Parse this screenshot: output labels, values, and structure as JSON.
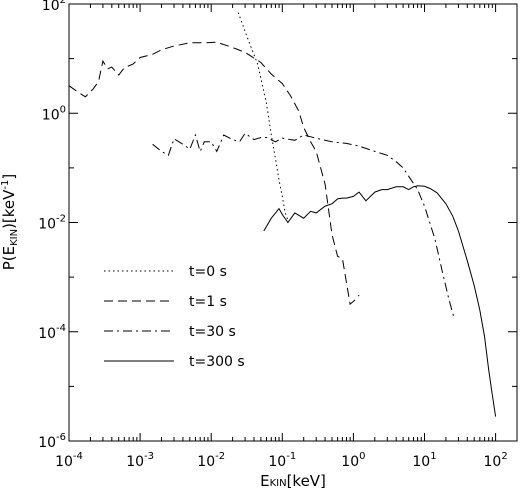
{
  "chart_data": {
    "type": "line",
    "xscale": "log",
    "yscale": "log",
    "xlim": [
      0.0001,
      200
    ],
    "ylim": [
      1e-06,
      100
    ],
    "ylabel": {
      "main": "P(E",
      "sub": "KIN",
      "rest": ")[keV",
      "sup": "-1",
      "end": "]"
    },
    "xlabel": {
      "main": "E",
      "sub": "KIN",
      "rest": "[keV]"
    },
    "x_ticks": [
      {
        "value": 0.0001,
        "base": "10",
        "exp": "-4"
      },
      {
        "value": 0.001,
        "base": "10",
        "exp": "-3"
      },
      {
        "value": 0.01,
        "base": "10",
        "exp": "-2"
      },
      {
        "value": 0.1,
        "base": "10",
        "exp": "-1"
      },
      {
        "value": 1,
        "base": "10",
        "exp": "0"
      },
      {
        "value": 10,
        "base": "10",
        "exp": "1"
      },
      {
        "value": 100,
        "base": "10",
        "exp": "2"
      }
    ],
    "y_ticks": [
      {
        "value": 1e-06,
        "base": "10",
        "exp": "-6"
      },
      {
        "value": 0.0001,
        "base": "10",
        "exp": "-4"
      },
      {
        "value": 0.01,
        "base": "10",
        "exp": "-2"
      },
      {
        "value": 1,
        "base": "10",
        "exp": "0"
      },
      {
        "value": 100,
        "base": "10",
        "exp": "2"
      }
    ],
    "series": [
      {
        "name": "t=0 s",
        "dash": "dotted",
        "x": [
          0.024,
          0.032,
          0.045,
          0.06,
          0.07,
          0.08,
          0.09,
          0.1,
          0.11,
          0.12
        ],
        "y": [
          70,
          25,
          8,
          1.5,
          0.4,
          0.15,
          0.06,
          0.03,
          0.015,
          0.011
        ]
      },
      {
        "name": "t=1 s",
        "dash": "dashed",
        "x": [
          0.0001,
          0.00013,
          0.00017,
          0.00022,
          0.00026,
          0.0003,
          0.00035,
          0.0004,
          0.0005,
          0.0006,
          0.0008,
          0.001,
          0.0015,
          0.002,
          0.003,
          0.005,
          0.008,
          0.012,
          0.02,
          0.03,
          0.05,
          0.07,
          0.1,
          0.13,
          0.17,
          0.2,
          0.25,
          0.3,
          0.4,
          0.5,
          0.6,
          0.7,
          0.9,
          1.1,
          1.2
        ],
        "y": [
          3.2,
          2.5,
          2.0,
          2.8,
          3.8,
          9.0,
          6.5,
          7.0,
          5.0,
          6.8,
          8.0,
          10.5,
          12.0,
          14.5,
          17.0,
          19.5,
          19.5,
          20.0,
          16.0,
          13.0,
          8.5,
          5.2,
          3.5,
          2.1,
          1.1,
          0.55,
          0.3,
          0.2,
          0.05,
          0.006,
          0.0024,
          0.0022,
          0.00032,
          0.0004,
          0.00047
        ]
      },
      {
        "name": "t=30 s",
        "dash": "dashdot",
        "x": [
          0.0015,
          0.002,
          0.0025,
          0.003,
          0.004,
          0.005,
          0.006,
          0.007,
          0.008,
          0.01,
          0.012,
          0.015,
          0.02,
          0.025,
          0.03,
          0.04,
          0.05,
          0.06,
          0.08,
          0.1,
          0.15,
          0.2,
          0.3,
          0.5,
          0.8,
          1.2,
          2,
          3,
          4,
          5,
          6,
          8,
          10,
          14,
          18,
          22,
          26
        ],
        "y": [
          0.27,
          0.2,
          0.17,
          0.34,
          0.27,
          0.22,
          0.4,
          0.2,
          0.3,
          0.3,
          0.2,
          0.4,
          0.33,
          0.3,
          0.43,
          0.33,
          0.36,
          0.36,
          0.3,
          0.35,
          0.32,
          0.4,
          0.35,
          0.3,
          0.28,
          0.25,
          0.2,
          0.17,
          0.13,
          0.1,
          0.07,
          0.04,
          0.02,
          0.005,
          0.0012,
          0.0004,
          0.00018
        ]
      },
      {
        "name": "t=300 s",
        "dash": "solid",
        "x": [
          0.055,
          0.07,
          0.09,
          0.1,
          0.12,
          0.15,
          0.2,
          0.25,
          0.3,
          0.4,
          0.5,
          0.6,
          0.7,
          0.8,
          1.0,
          1.2,
          1.5,
          2,
          2.5,
          3,
          4,
          5,
          6,
          7,
          8,
          10,
          12,
          15,
          20,
          25,
          30,
          40,
          50,
          60,
          70,
          80,
          90,
          100
        ],
        "y": [
          0.007,
          0.012,
          0.018,
          0.014,
          0.01,
          0.015,
          0.012,
          0.016,
          0.015,
          0.02,
          0.022,
          0.027,
          0.028,
          0.028,
          0.03,
          0.036,
          0.025,
          0.036,
          0.04,
          0.04,
          0.045,
          0.045,
          0.04,
          0.045,
          0.047,
          0.046,
          0.042,
          0.035,
          0.022,
          0.013,
          0.007,
          0.002,
          0.0007,
          0.00025,
          8e-05,
          2e-05,
          7e-06,
          2.8e-06
        ]
      }
    ],
    "legend": {
      "placement": "bottom-left",
      "entries": [
        "t=0 s",
        "t=1 s",
        "t=30 s",
        "t=300 s"
      ]
    }
  }
}
